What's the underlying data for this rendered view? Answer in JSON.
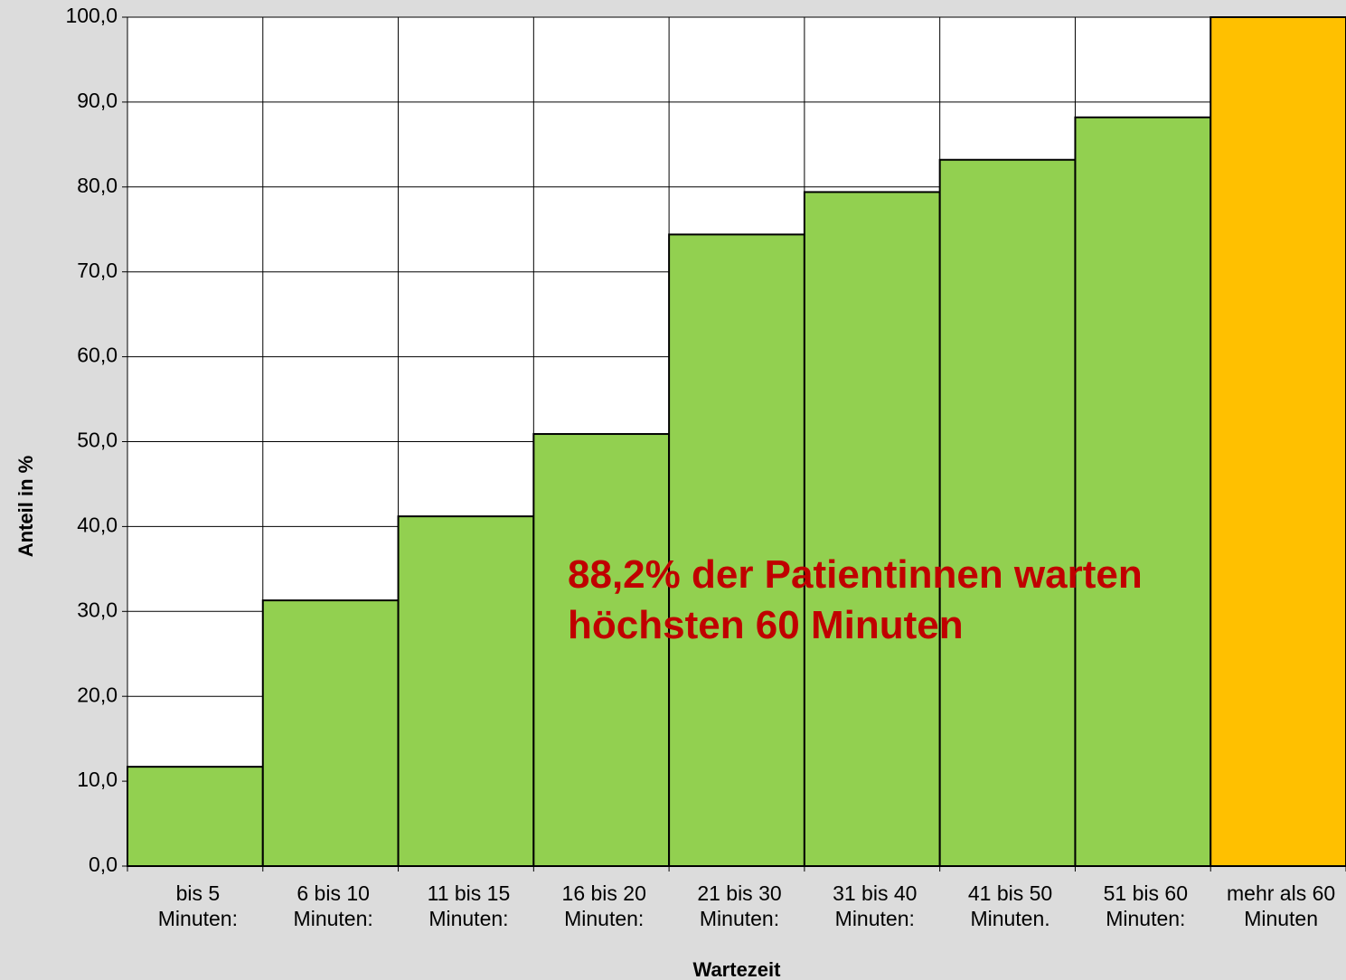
{
  "chart_data": {
    "type": "bar",
    "categories": [
      "bis 5\nMinuten:",
      "6 bis 10\nMinuten:",
      "11 bis 15\nMinuten:",
      "16 bis 20\nMinuten:",
      "21 bis 30\nMinuten:",
      "31 bis 40\nMinuten:",
      "41 bis 50\nMinuten.",
      "51 bis 60\nMinuten:",
      "mehr als 60\nMinuten"
    ],
    "values": [
      11.7,
      31.3,
      41.2,
      50.9,
      74.4,
      79.4,
      83.2,
      88.2,
      100.0
    ],
    "colors": [
      "#92d050",
      "#92d050",
      "#92d050",
      "#92d050",
      "#92d050",
      "#92d050",
      "#92d050",
      "#92d050",
      "#ffc000"
    ],
    "ylim": [
      0,
      100
    ],
    "yticks": [
      {
        "value": 0,
        "label": "0,0"
      },
      {
        "value": 10,
        "label": "10,0"
      },
      {
        "value": 20,
        "label": "20,0"
      },
      {
        "value": 30,
        "label": "30,0"
      },
      {
        "value": 40,
        "label": "40,0"
      },
      {
        "value": 50,
        "label": "50,0"
      },
      {
        "value": 60,
        "label": "60,0"
      },
      {
        "value": 70,
        "label": "70,0"
      },
      {
        "value": 80,
        "label": "80,0"
      },
      {
        "value": 90,
        "label": "90,0"
      },
      {
        "value": 100,
        "label": "100,0"
      }
    ],
    "y_label": "Anteil in %",
    "x_label": "Wartezeit",
    "annotation": "88,2% der Patientinnen warten\nhöchsten 60 Minuten",
    "grid": true
  }
}
